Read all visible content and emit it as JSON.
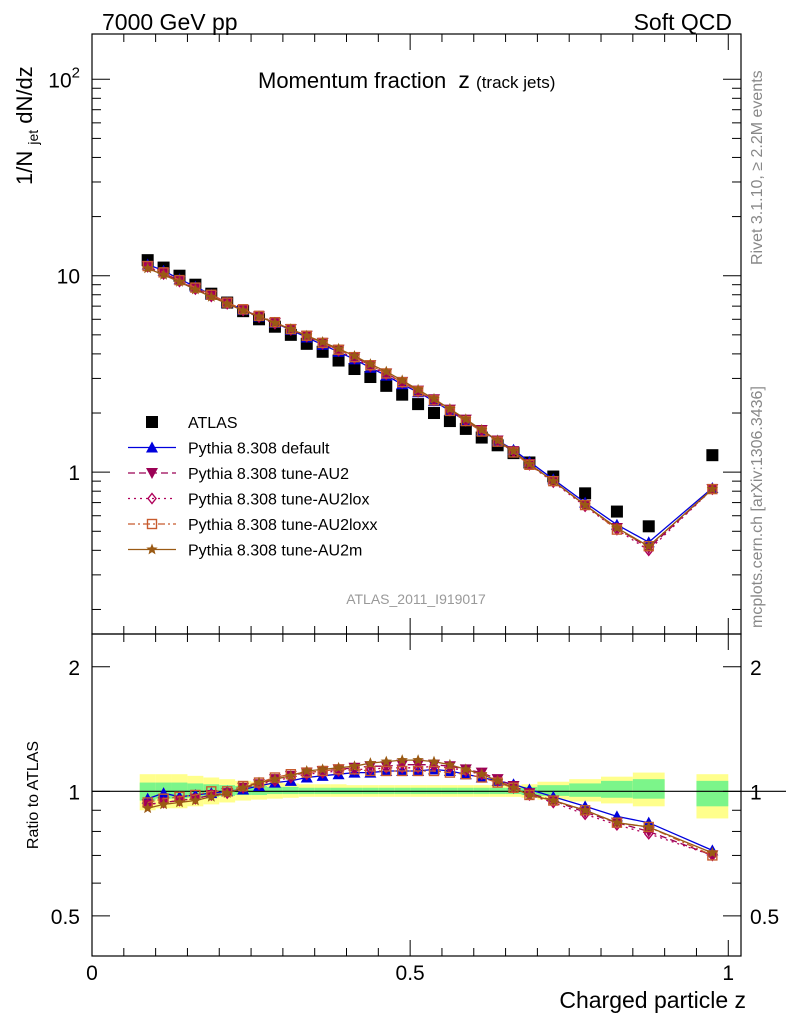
{
  "header": {
    "left": "7000 GeV pp",
    "right": "Soft QCD",
    "side_rivet": "Rivet 3.1.10, ≥ 2.2M events",
    "side_mcplots": "mcplots.cern.ch [arXiv:1306.3436]",
    "analysis_id": "ATLAS_2011_I919017"
  },
  "colors": {
    "atlas": "#000000",
    "default": "#0000dd",
    "au2": "#9b0055",
    "au2lox": "#b0005a",
    "au2loxx": "#c75b2e",
    "au2m": "#9a5a14",
    "band_inner": "#7cf58a",
    "band_outer": "#ffff8c"
  },
  "chart_data": [
    {
      "type": "line",
      "title_main": "Momentum fraction",
      "title_var": "z",
      "title_sub": "(track jets)",
      "ylabel_parts": [
        "1/N",
        "jet",
        " dN/dz"
      ],
      "xlabel": "",
      "yscale": "log",
      "ylim": [
        0.15,
        170
      ],
      "xlim": [
        0,
        1.02
      ],
      "ytick_labels": [
        {
          "value": 1,
          "label": "1"
        },
        {
          "value": 10,
          "label": "10"
        },
        {
          "value": 100,
          "label": "10",
          "sup": "2"
        }
      ],
      "legend_position": "lower-left",
      "x": [
        0.0875,
        0.1125,
        0.1375,
        0.1625,
        0.1875,
        0.2125,
        0.2375,
        0.2625,
        0.2875,
        0.3125,
        0.3375,
        0.3625,
        0.3875,
        0.4125,
        0.4375,
        0.4625,
        0.4875,
        0.5125,
        0.5375,
        0.5625,
        0.5875,
        0.6125,
        0.6375,
        0.6625,
        0.6875,
        0.725,
        0.775,
        0.825,
        0.875,
        0.975
      ],
      "series": [
        {
          "name": "ATLAS",
          "key": "atlas",
          "marker": "square",
          "line": "none",
          "values": [
            12.0,
            11.0,
            10.0,
            9.0,
            8.1,
            7.3,
            6.6,
            6.0,
            5.5,
            5.0,
            4.5,
            4.1,
            3.7,
            3.35,
            3.05,
            2.75,
            2.48,
            2.22,
            2.0,
            1.82,
            1.66,
            1.5,
            1.37,
            1.25,
            1.12,
            0.95,
            0.78,
            0.63,
            0.53,
            1.22
          ]
        },
        {
          "name": "Pythia 8.308 default",
          "key": "default",
          "marker": "triangle-up",
          "line": "solid",
          "values": [
            11.4,
            10.6,
            9.6,
            8.8,
            8.0,
            7.3,
            6.7,
            6.2,
            5.75,
            5.3,
            4.85,
            4.45,
            4.1,
            3.75,
            3.4,
            3.1,
            2.8,
            2.55,
            2.3,
            2.05,
            1.82,
            1.62,
            1.45,
            1.3,
            1.13,
            0.92,
            0.7,
            0.54,
            0.44,
            0.83
          ]
        },
        {
          "name": "Pythia 8.308 tune-AU2",
          "key": "au2",
          "marker": "triangle-down",
          "line": "dashed",
          "values": [
            11.2,
            10.3,
            9.4,
            8.6,
            7.9,
            7.25,
            6.7,
            6.2,
            5.75,
            5.35,
            4.95,
            4.55,
            4.2,
            3.85,
            3.5,
            3.18,
            2.88,
            2.6,
            2.35,
            2.08,
            1.85,
            1.64,
            1.45,
            1.28,
            1.1,
            0.9,
            0.68,
            0.52,
            0.41,
            0.82
          ]
        },
        {
          "name": "Pythia 8.308 tune-AU2lox",
          "key": "au2lox",
          "marker": "diamond-open",
          "line": "dotted",
          "values": [
            11.1,
            10.2,
            9.35,
            8.55,
            7.85,
            7.2,
            6.65,
            6.15,
            5.7,
            5.3,
            4.9,
            4.5,
            4.15,
            3.8,
            3.45,
            3.15,
            2.85,
            2.57,
            2.32,
            2.06,
            1.83,
            1.63,
            1.44,
            1.27,
            1.09,
            0.89,
            0.67,
            0.51,
            0.4,
            0.82
          ]
        },
        {
          "name": "Pythia 8.308 tune-AU2loxx",
          "key": "au2loxx",
          "marker": "square-open",
          "line": "dashdot",
          "values": [
            11.2,
            10.4,
            9.5,
            8.7,
            8.0,
            7.3,
            6.75,
            6.25,
            5.8,
            5.35,
            4.95,
            4.55,
            4.2,
            3.85,
            3.5,
            3.18,
            2.87,
            2.58,
            2.32,
            2.05,
            1.82,
            1.61,
            1.43,
            1.26,
            1.09,
            0.9,
            0.68,
            0.51,
            0.42,
            0.82
          ]
        },
        {
          "name": "Pythia 8.308 tune-AU2m",
          "key": "au2m",
          "marker": "star",
          "line": "solid",
          "values": [
            10.9,
            10.1,
            9.3,
            8.5,
            7.8,
            7.2,
            6.65,
            6.2,
            5.75,
            5.35,
            4.95,
            4.6,
            4.25,
            3.9,
            3.55,
            3.25,
            2.93,
            2.63,
            2.36,
            2.1,
            1.86,
            1.64,
            1.45,
            1.28,
            1.1,
            0.9,
            0.68,
            0.52,
            0.42,
            0.82
          ]
        }
      ]
    },
    {
      "type": "line",
      "ylabel": "Ratio to ATLAS",
      "xlabel": "Charged particle z",
      "yscale": "log",
      "ylim": [
        0.4,
        2.4
      ],
      "xlim": [
        0,
        1.02
      ],
      "ytick_labels": [
        {
          "value": 0.5,
          "label": "0.5"
        },
        {
          "value": 1,
          "label": "1"
        },
        {
          "value": 2,
          "label": "2"
        }
      ],
      "xtick_labels": [
        {
          "value": 0,
          "label": "0"
        },
        {
          "value": 0.5,
          "label": "0.5"
        },
        {
          "value": 1,
          "label": "1"
        }
      ],
      "x": [
        0.0875,
        0.1125,
        0.1375,
        0.1625,
        0.1875,
        0.2125,
        0.2375,
        0.2625,
        0.2875,
        0.3125,
        0.3375,
        0.3625,
        0.3875,
        0.4125,
        0.4375,
        0.4625,
        0.4875,
        0.5125,
        0.5375,
        0.5625,
        0.5875,
        0.6125,
        0.6375,
        0.6625,
        0.6875,
        0.725,
        0.775,
        0.825,
        0.875,
        0.975
      ],
      "bins": [
        {
          "lo": 0.075,
          "hi": 0.1,
          "inner": [
            0.95,
            1.05
          ],
          "outer": [
            0.9,
            1.1
          ]
        },
        {
          "lo": 0.1,
          "hi": 0.125,
          "inner": [
            0.96,
            1.05
          ],
          "outer": [
            0.91,
            1.1
          ]
        },
        {
          "lo": 0.125,
          "hi": 0.15,
          "inner": [
            0.96,
            1.05
          ],
          "outer": [
            0.91,
            1.1
          ]
        },
        {
          "lo": 0.15,
          "hi": 0.175,
          "inner": [
            0.965,
            1.045
          ],
          "outer": [
            0.92,
            1.09
          ]
        },
        {
          "lo": 0.175,
          "hi": 0.2,
          "inner": [
            0.97,
            1.04
          ],
          "outer": [
            0.93,
            1.08
          ]
        },
        {
          "lo": 0.2,
          "hi": 0.225,
          "inner": [
            0.975,
            1.035
          ],
          "outer": [
            0.94,
            1.07
          ]
        },
        {
          "lo": 0.225,
          "hi": 0.25,
          "inner": [
            0.98,
            1.03
          ],
          "outer": [
            0.95,
            1.06
          ]
        },
        {
          "lo": 0.25,
          "hi": 0.275,
          "inner": [
            0.98,
            1.03
          ],
          "outer": [
            0.955,
            1.055
          ]
        },
        {
          "lo": 0.275,
          "hi": 0.3,
          "inner": [
            0.985,
            1.025
          ],
          "outer": [
            0.96,
            1.05
          ]
        },
        {
          "lo": 0.3,
          "hi": 0.325,
          "inner": [
            0.985,
            1.025
          ],
          "outer": [
            0.965,
            1.045
          ]
        },
        {
          "lo": 0.325,
          "hi": 0.35,
          "inner": [
            0.985,
            1.02
          ],
          "outer": [
            0.97,
            1.04
          ]
        },
        {
          "lo": 0.35,
          "hi": 0.375,
          "inner": [
            0.985,
            1.02
          ],
          "outer": [
            0.97,
            1.04
          ]
        },
        {
          "lo": 0.375,
          "hi": 0.4,
          "inner": [
            0.985,
            1.02
          ],
          "outer": [
            0.97,
            1.04
          ]
        },
        {
          "lo": 0.4,
          "hi": 0.425,
          "inner": [
            0.985,
            1.02
          ],
          "outer": [
            0.97,
            1.035
          ]
        },
        {
          "lo": 0.425,
          "hi": 0.45,
          "inner": [
            0.985,
            1.02
          ],
          "outer": [
            0.97,
            1.035
          ]
        },
        {
          "lo": 0.45,
          "hi": 0.475,
          "inner": [
            0.985,
            1.02
          ],
          "outer": [
            0.97,
            1.035
          ]
        },
        {
          "lo": 0.475,
          "hi": 0.5,
          "inner": [
            0.985,
            1.02
          ],
          "outer": [
            0.97,
            1.035
          ]
        },
        {
          "lo": 0.5,
          "hi": 0.525,
          "inner": [
            0.985,
            1.02
          ],
          "outer": [
            0.97,
            1.035
          ]
        },
        {
          "lo": 0.525,
          "hi": 0.55,
          "inner": [
            0.985,
            1.02
          ],
          "outer": [
            0.97,
            1.035
          ]
        },
        {
          "lo": 0.55,
          "hi": 0.575,
          "inner": [
            0.985,
            1.02
          ],
          "outer": [
            0.97,
            1.035
          ]
        },
        {
          "lo": 0.575,
          "hi": 0.6,
          "inner": [
            0.985,
            1.02
          ],
          "outer": [
            0.97,
            1.035
          ]
        },
        {
          "lo": 0.6,
          "hi": 0.625,
          "inner": [
            0.985,
            1.02
          ],
          "outer": [
            0.97,
            1.035
          ]
        },
        {
          "lo": 0.625,
          "hi": 0.65,
          "inner": [
            0.985,
            1.02
          ],
          "outer": [
            0.97,
            1.035
          ]
        },
        {
          "lo": 0.65,
          "hi": 0.675,
          "inner": [
            0.985,
            1.02
          ],
          "outer": [
            0.97,
            1.035
          ]
        },
        {
          "lo": 0.675,
          "hi": 0.7,
          "inner": [
            0.98,
            1.025
          ],
          "outer": [
            0.965,
            1.04
          ]
        },
        {
          "lo": 0.7,
          "hi": 0.75,
          "inner": [
            0.975,
            1.035
          ],
          "outer": [
            0.955,
            1.055
          ]
        },
        {
          "lo": 0.75,
          "hi": 0.8,
          "inner": [
            0.97,
            1.045
          ],
          "outer": [
            0.945,
            1.07
          ]
        },
        {
          "lo": 0.8,
          "hi": 0.85,
          "inner": [
            0.965,
            1.06
          ],
          "outer": [
            0.935,
            1.085
          ]
        },
        {
          "lo": 0.85,
          "hi": 0.9,
          "inner": [
            0.96,
            1.07
          ],
          "outer": [
            0.92,
            1.11
          ]
        },
        {
          "lo": 0.95,
          "hi": 1.0,
          "inner": [
            0.92,
            1.06
          ],
          "outer": [
            0.86,
            1.1
          ]
        }
      ],
      "series": [
        {
          "name": "Pythia 8.308 default",
          "key": "default",
          "marker": "triangle-up",
          "line": "solid",
          "values": [
            0.96,
            0.99,
            0.97,
            0.98,
            0.99,
            1.0,
            1.01,
            1.03,
            1.05,
            1.06,
            1.08,
            1.09,
            1.1,
            1.11,
            1.11,
            1.12,
            1.12,
            1.12,
            1.13,
            1.12,
            1.1,
            1.08,
            1.06,
            1.04,
            1.01,
            0.97,
            0.92,
            0.87,
            0.84,
            0.72
          ]
        },
        {
          "name": "Pythia 8.308 tune-AU2",
          "key": "au2",
          "marker": "triangle-down",
          "line": "dashed",
          "values": [
            0.93,
            0.94,
            0.95,
            0.96,
            0.98,
            0.99,
            1.02,
            1.04,
            1.07,
            1.09,
            1.11,
            1.12,
            1.13,
            1.14,
            1.15,
            1.15,
            1.16,
            1.16,
            1.16,
            1.15,
            1.13,
            1.11,
            1.07,
            1.03,
            0.99,
            0.95,
            0.89,
            0.84,
            0.8,
            0.7
          ]
        },
        {
          "name": "Pythia 8.308 tune-AU2lox",
          "key": "au2lox",
          "marker": "diamond-open",
          "line": "dotted",
          "values": [
            0.93,
            0.94,
            0.95,
            0.96,
            0.98,
            0.99,
            1.02,
            1.04,
            1.06,
            1.08,
            1.1,
            1.11,
            1.12,
            1.13,
            1.13,
            1.14,
            1.14,
            1.14,
            1.15,
            1.14,
            1.12,
            1.1,
            1.06,
            1.02,
            0.98,
            0.94,
            0.88,
            0.83,
            0.79,
            0.7
          ]
        },
        {
          "name": "Pythia 8.308 tune-AU2loxx",
          "key": "au2loxx",
          "marker": "square-open",
          "line": "dashdot",
          "values": [
            0.94,
            0.96,
            0.97,
            0.98,
            1.0,
            1.0,
            1.03,
            1.05,
            1.08,
            1.1,
            1.11,
            1.12,
            1.13,
            1.13,
            1.12,
            1.12,
            1.12,
            1.12,
            1.12,
            1.11,
            1.1,
            1.08,
            1.05,
            1.02,
            0.98,
            0.95,
            0.9,
            0.84,
            0.82,
            0.7
          ]
        },
        {
          "name": "Pythia 8.308 tune-AU2m",
          "key": "au2m",
          "marker": "star",
          "line": "solid",
          "values": [
            0.91,
            0.93,
            0.94,
            0.95,
            0.97,
            0.99,
            1.02,
            1.05,
            1.07,
            1.09,
            1.12,
            1.13,
            1.14,
            1.15,
            1.17,
            1.18,
            1.19,
            1.19,
            1.18,
            1.16,
            1.13,
            1.1,
            1.06,
            1.02,
            0.98,
            0.95,
            0.9,
            0.84,
            0.82,
            0.71
          ]
        }
      ]
    }
  ]
}
